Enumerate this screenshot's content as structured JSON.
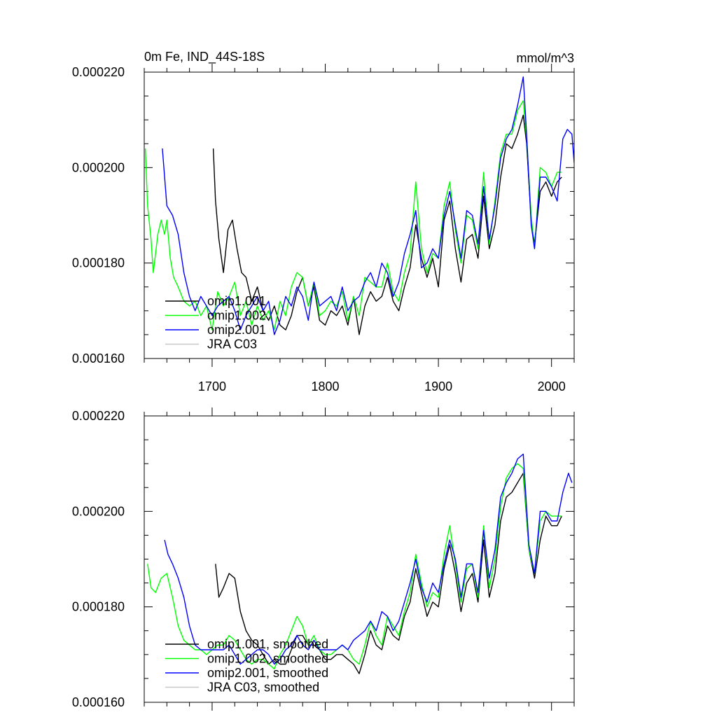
{
  "chart_data": [
    {
      "type": "line",
      "title": "0m Fe, IND_44S-18S",
      "units": "mmol/m^3",
      "xlabel": "",
      "ylabel": "",
      "xlim": [
        1640,
        2020
      ],
      "ylim": [
        0.00016,
        0.00022
      ],
      "yticks": [
        "0.000160",
        "0.000180",
        "0.000200",
        "0.000220"
      ],
      "xticks": [
        "1700",
        "1800",
        "1900",
        "2000"
      ],
      "legend_position": "lower-left",
      "series": [
        {
          "name": "omip1.001",
          "color": "#000000",
          "x": [
            1701,
            1703,
            1706,
            1710,
            1714,
            1718,
            1722,
            1726,
            1730,
            1735,
            1740,
            1745,
            1750,
            1755,
            1760,
            1765,
            1770,
            1775,
            1780,
            1785,
            1790,
            1795,
            1800,
            1805,
            1810,
            1815,
            1820,
            1825,
            1830,
            1835,
            1840,
            1845,
            1850,
            1855,
            1860,
            1865,
            1870,
            1875,
            1880,
            1885,
            1890,
            1895,
            1900,
            1905,
            1910,
            1915,
            1920,
            1925,
            1930,
            1935,
            1940,
            1945,
            1950,
            1955,
            1960,
            1965,
            1970,
            1975,
            1978,
            1982,
            1985,
            1990,
            1995,
            2000,
            2005,
            2009
          ],
          "y": [
            0.000204,
            0.000193,
            0.000185,
            0.000178,
            0.000187,
            0.000189,
            0.000183,
            0.000178,
            0.000177,
            0.000172,
            0.000175,
            0.00017,
            0.000168,
            0.000171,
            0.000167,
            0.000166,
            0.000169,
            0.000174,
            0.000177,
            0.000171,
            0.000175,
            0.000168,
            0.000167,
            0.00017,
            0.000169,
            0.000171,
            0.000167,
            0.000173,
            0.000165,
            0.000171,
            0.000174,
            0.000172,
            0.000173,
            0.000177,
            0.000172,
            0.00017,
            0.000175,
            0.000179,
            0.000188,
            0.000181,
            0.000177,
            0.000181,
            0.000175,
            0.000189,
            0.000193,
            0.000183,
            0.000176,
            0.000185,
            0.000186,
            0.000181,
            0.000194,
            0.000183,
            0.000188,
            0.000198,
            0.000205,
            0.000204,
            0.000207,
            0.000211,
            0.000205,
            0.000189,
            0.000184,
            0.000195,
            0.000197,
            0.000194,
            0.000197,
            0.000198
          ]
        },
        {
          "name": "omip1.002",
          "color": "#00ff00",
          "x": [
            1641,
            1643,
            1646,
            1648,
            1650,
            1652,
            1655,
            1658,
            1660,
            1663,
            1666,
            1670,
            1675,
            1680,
            1685,
            1690,
            1695,
            1700,
            1705,
            1710,
            1715,
            1720,
            1725,
            1730,
            1735,
            1740,
            1745,
            1750,
            1755,
            1760,
            1765,
            1770,
            1775,
            1780,
            1785,
            1790,
            1795,
            1800,
            1805,
            1810,
            1815,
            1820,
            1825,
            1830,
            1835,
            1840,
            1845,
            1850,
            1855,
            1860,
            1865,
            1870,
            1875,
            1880,
            1885,
            1890,
            1895,
            1900,
            1905,
            1910,
            1915,
            1920,
            1925,
            1930,
            1935,
            1940,
            1945,
            1950,
            1955,
            1960,
            1965,
            1970,
            1975,
            1978,
            1982,
            1985,
            1990,
            1995,
            2000,
            2005,
            2009
          ],
          "y": [
            0.000204,
            0.000192,
            0.000185,
            0.000178,
            0.000182,
            0.000186,
            0.000189,
            0.000186,
            0.000189,
            0.000181,
            0.000177,
            0.000175,
            0.000172,
            0.000171,
            0.000172,
            0.000169,
            0.000171,
            0.000166,
            0.000174,
            0.000171,
            0.000173,
            0.000176,
            0.000169,
            0.000172,
            0.000167,
            0.000171,
            0.000168,
            0.00017,
            0.000166,
            0.000172,
            0.000169,
            0.000175,
            0.000178,
            0.000177,
            0.000171,
            0.000176,
            0.000169,
            0.00017,
            0.000172,
            0.000171,
            0.000174,
            0.000168,
            0.000173,
            0.000169,
            0.000177,
            0.000176,
            0.000175,
            0.000175,
            0.00018,
            0.000174,
            0.000172,
            0.000178,
            0.000182,
            0.000197,
            0.000183,
            0.000178,
            0.000182,
            0.000181,
            0.000192,
            0.000197,
            0.000187,
            0.00018,
            0.00019,
            0.000189,
            0.000183,
            0.000199,
            0.000184,
            0.000193,
            0.000203,
            0.000207,
            0.000207,
            0.000212,
            0.000214,
            0.000206,
            0.00019,
            0.000183,
            0.0002,
            0.000199,
            0.000196,
            0.000199,
            0.000199
          ]
        },
        {
          "name": "omip2.001",
          "color": "#0000ff",
          "x": [
            1656,
            1660,
            1665,
            1670,
            1675,
            1680,
            1685,
            1690,
            1695,
            1700,
            1705,
            1710,
            1715,
            1720,
            1725,
            1730,
            1735,
            1740,
            1745,
            1750,
            1755,
            1760,
            1765,
            1770,
            1775,
            1780,
            1785,
            1790,
            1795,
            1800,
            1805,
            1810,
            1815,
            1820,
            1825,
            1830,
            1835,
            1840,
            1845,
            1850,
            1855,
            1860,
            1865,
            1870,
            1875,
            1880,
            1885,
            1890,
            1895,
            1900,
            1905,
            1910,
            1915,
            1920,
            1925,
            1930,
            1935,
            1940,
            1945,
            1950,
            1955,
            1960,
            1965,
            1970,
            1975,
            1978,
            1982,
            1985,
            1990,
            1995,
            2000,
            2005,
            2010,
            2014,
            2018,
            2020
          ],
          "y": [
            0.000204,
            0.000192,
            0.00019,
            0.000186,
            0.000178,
            0.000173,
            0.00017,
            0.000173,
            0.000171,
            0.000169,
            0.000171,
            0.000172,
            0.000173,
            0.00017,
            0.000166,
            0.000169,
            0.000171,
            0.000173,
            0.00017,
            0.000172,
            0.000165,
            0.000168,
            0.000173,
            0.000171,
            0.000175,
            0.000173,
            0.000168,
            0.000176,
            0.000171,
            0.000172,
            0.000173,
            0.00017,
            0.000175,
            0.00017,
            0.000172,
            0.000173,
            0.000176,
            0.000178,
            0.000175,
            0.00018,
            0.000178,
            0.000173,
            0.000176,
            0.000182,
            0.000186,
            0.000191,
            0.000179,
            0.00018,
            0.000183,
            0.000181,
            0.00019,
            0.000195,
            0.000188,
            0.000181,
            0.000191,
            0.00019,
            0.000184,
            0.000196,
            0.000185,
            0.000192,
            0.000202,
            0.000206,
            0.000208,
            0.000213,
            0.000219,
            0.000207,
            0.000188,
            0.000183,
            0.000198,
            0.000198,
            0.000196,
            0.000193,
            0.000206,
            0.000208,
            0.000207,
            0.000201
          ]
        },
        {
          "name": "JRA C03",
          "color": "#c8c8c8",
          "x": [],
          "y": []
        }
      ]
    },
    {
      "type": "line",
      "title": "",
      "xlabel": "",
      "ylabel": "",
      "xlim": [
        1640,
        2020
      ],
      "ylim": [
        0.00016,
        0.00022
      ],
      "yticks": [
        "0.000160",
        "0.000180",
        "0.000200",
        "0.000220"
      ],
      "xticks": [],
      "legend_position": "lower-left",
      "series": [
        {
          "name": "omip1.001, smoothed",
          "color": "#000000",
          "x": [
            1703,
            1706,
            1710,
            1715,
            1720,
            1725,
            1730,
            1735,
            1740,
            1745,
            1750,
            1755,
            1760,
            1765,
            1770,
            1775,
            1780,
            1785,
            1790,
            1795,
            1800,
            1805,
            1810,
            1815,
            1820,
            1825,
            1830,
            1835,
            1840,
            1845,
            1850,
            1855,
            1860,
            1865,
            1870,
            1875,
            1880,
            1885,
            1890,
            1895,
            1900,
            1905,
            1910,
            1915,
            1920,
            1925,
            1930,
            1935,
            1940,
            1945,
            1950,
            1955,
            1960,
            1965,
            1970,
            1975,
            1980,
            1985,
            1990,
            1995,
            2000,
            2005,
            2009
          ],
          "y": [
            0.000189,
            0.000182,
            0.000184,
            0.000187,
            0.000186,
            0.000179,
            0.000175,
            0.000173,
            0.000172,
            0.00017,
            0.000168,
            0.000169,
            0.000168,
            0.000168,
            0.000171,
            0.000174,
            0.000174,
            0.000172,
            0.000172,
            0.000171,
            0.000169,
            0.000169,
            0.00017,
            0.00017,
            0.000169,
            0.000168,
            0.000166,
            0.00017,
            0.000175,
            0.000172,
            0.000171,
            0.000176,
            0.000174,
            0.000173,
            0.000178,
            0.000181,
            0.000188,
            0.000183,
            0.000178,
            0.000181,
            0.00018,
            0.000188,
            0.000193,
            0.000187,
            0.000179,
            0.000185,
            0.000187,
            0.000181,
            0.000194,
            0.000182,
            0.000187,
            0.000198,
            0.000203,
            0.000204,
            0.000206,
            0.000208,
            0.000192,
            0.000186,
            0.000194,
            0.000199,
            0.000197,
            0.000197,
            0.000199
          ]
        },
        {
          "name": "omip1.002, smoothed",
          "color": "#00ff00",
          "x": [
            1643,
            1646,
            1650,
            1655,
            1660,
            1665,
            1670,
            1675,
            1680,
            1685,
            1690,
            1695,
            1700,
            1705,
            1710,
            1715,
            1720,
            1725,
            1730,
            1735,
            1740,
            1745,
            1750,
            1755,
            1760,
            1765,
            1770,
            1775,
            1780,
            1785,
            1790,
            1795,
            1800,
            1805,
            1810,
            1815,
            1820,
            1825,
            1830,
            1835,
            1840,
            1845,
            1850,
            1855,
            1860,
            1865,
            1870,
            1875,
            1880,
            1885,
            1890,
            1895,
            1900,
            1905,
            1910,
            1915,
            1920,
            1925,
            1930,
            1935,
            1940,
            1945,
            1950,
            1955,
            1960,
            1965,
            1970,
            1975,
            1980,
            1985,
            1990,
            1995,
            2000,
            2005,
            2009
          ],
          "y": [
            0.000189,
            0.000184,
            0.000183,
            0.000186,
            0.000187,
            0.000182,
            0.000176,
            0.000173,
            0.000172,
            0.000171,
            0.000171,
            0.00017,
            0.000171,
            0.000172,
            0.000172,
            0.000174,
            0.000173,
            0.000171,
            0.000169,
            0.000168,
            0.000169,
            0.000169,
            0.000168,
            0.000167,
            0.00017,
            0.000172,
            0.000175,
            0.000178,
            0.000176,
            0.000172,
            0.000174,
            0.000171,
            0.00017,
            0.00017,
            0.000171,
            0.000172,
            0.000171,
            0.000169,
            0.000168,
            0.000172,
            0.000177,
            0.000174,
            0.000172,
            0.000178,
            0.000176,
            0.000174,
            0.000179,
            0.000183,
            0.000191,
            0.000185,
            0.00018,
            0.000183,
            0.000182,
            0.000191,
            0.000197,
            0.000189,
            0.000181,
            0.000188,
            0.000189,
            0.000182,
            0.000197,
            0.000184,
            0.00019,
            0.000201,
            0.000207,
            0.000209,
            0.00021,
            0.000209,
            0.000192,
            0.000187,
            0.000198,
            0.0002,
            0.000199,
            0.000199,
            0.000199
          ]
        },
        {
          "name": "omip2.001, smoothed",
          "color": "#0000ff",
          "x": [
            1658,
            1661,
            1665,
            1670,
            1675,
            1680,
            1685,
            1690,
            1695,
            1700,
            1705,
            1710,
            1715,
            1720,
            1725,
            1730,
            1735,
            1740,
            1745,
            1750,
            1755,
            1760,
            1765,
            1770,
            1775,
            1780,
            1785,
            1790,
            1795,
            1800,
            1805,
            1810,
            1815,
            1820,
            1825,
            1830,
            1835,
            1840,
            1845,
            1850,
            1855,
            1860,
            1865,
            1870,
            1875,
            1880,
            1885,
            1890,
            1895,
            1900,
            1905,
            1910,
            1915,
            1920,
            1925,
            1930,
            1935,
            1940,
            1945,
            1950,
            1955,
            1960,
            1965,
            1970,
            1975,
            1980,
            1985,
            1990,
            1995,
            2000,
            2005,
            2010,
            2015,
            2018
          ],
          "y": [
            0.000194,
            0.000191,
            0.000189,
            0.000186,
            0.000182,
            0.000176,
            0.000172,
            0.000171,
            0.000171,
            0.000171,
            0.000171,
            0.000171,
            0.000172,
            0.00017,
            0.000168,
            0.000169,
            0.00017,
            0.000171,
            0.000171,
            0.00017,
            0.000168,
            0.000169,
            0.000171,
            0.000172,
            0.000174,
            0.000172,
            0.000171,
            0.000173,
            0.000171,
            0.000171,
            0.000171,
            0.000171,
            0.000172,
            0.000171,
            0.000173,
            0.000174,
            0.000175,
            0.000177,
            0.000175,
            0.000179,
            0.000178,
            0.000175,
            0.000177,
            0.000181,
            0.000185,
            0.00019,
            0.000184,
            0.000181,
            0.000185,
            0.000183,
            0.000189,
            0.000194,
            0.00019,
            0.000182,
            0.000189,
            0.000189,
            0.000183,
            0.000196,
            0.000186,
            0.000192,
            0.000203,
            0.000206,
            0.000208,
            0.000211,
            0.000212,
            0.000193,
            0.000187,
            0.0002,
            0.0002,
            0.000198,
            0.000198,
            0.000204,
            0.000208,
            0.000206
          ]
        },
        {
          "name": "JRA C03, smoothed",
          "color": "#c8c8c8",
          "x": [],
          "y": []
        }
      ]
    }
  ]
}
